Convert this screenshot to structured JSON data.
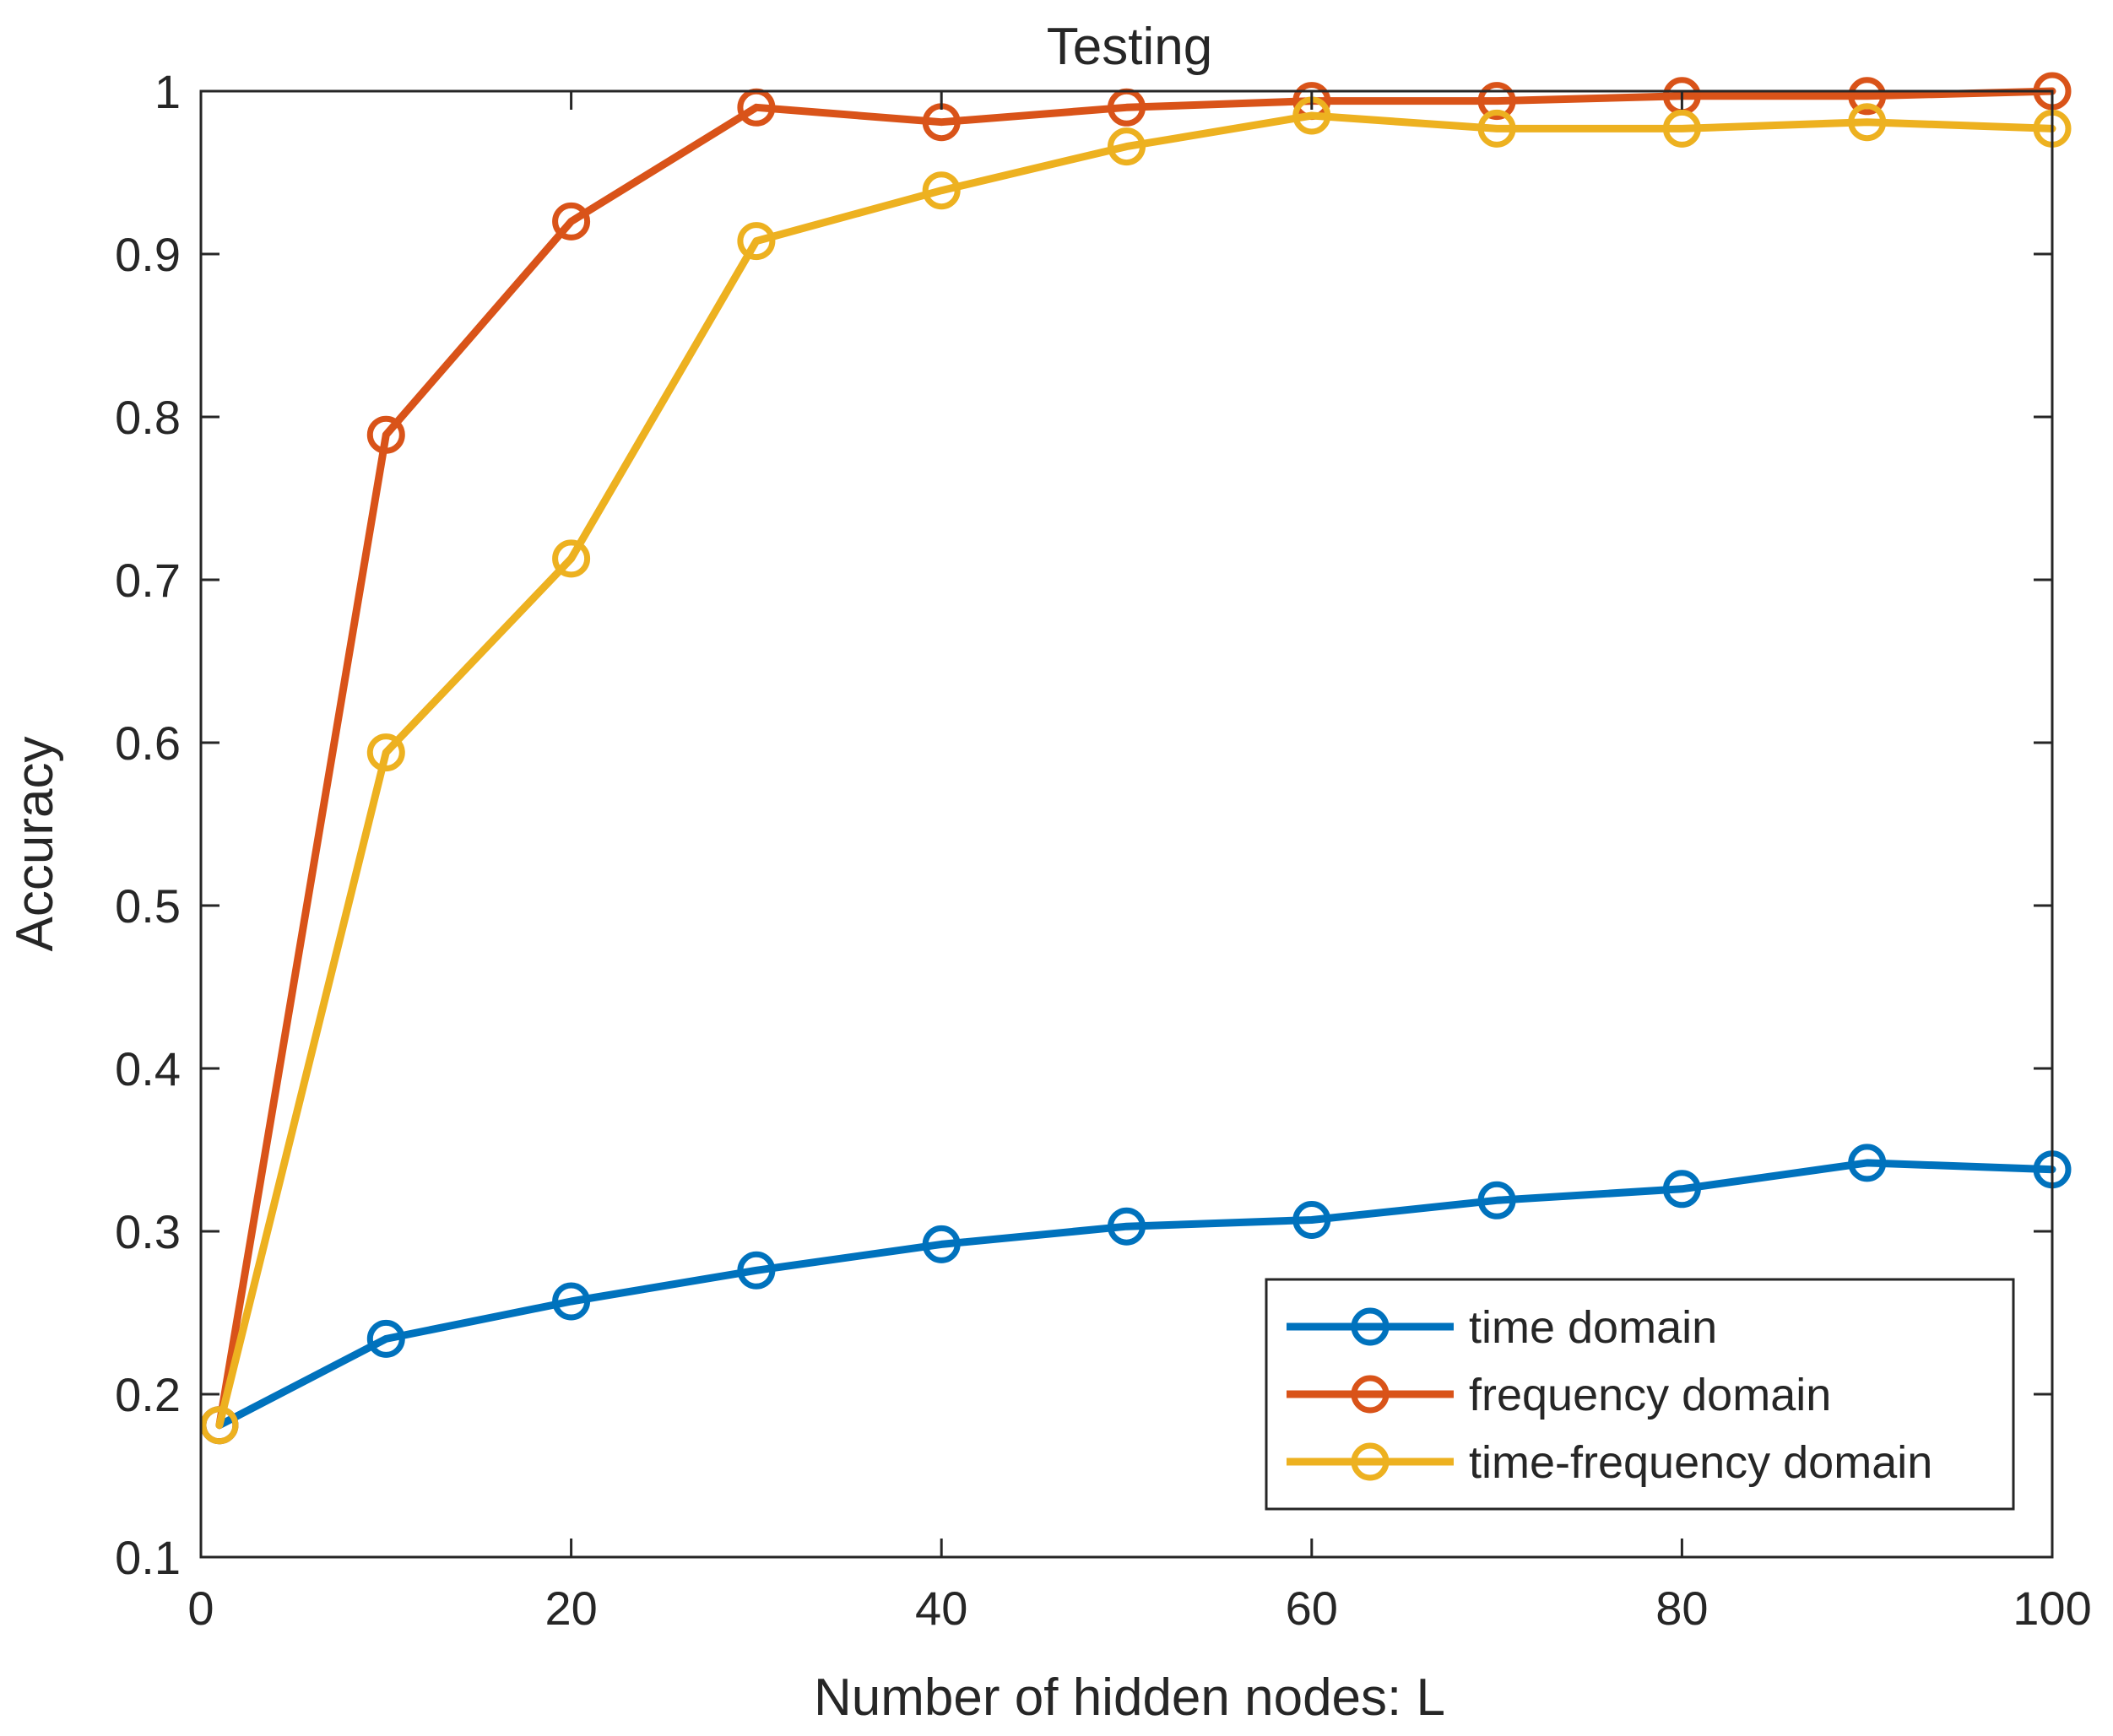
{
  "chart_data": {
    "type": "line",
    "title": "Testing",
    "xlabel": "Number of hidden nodes: L",
    "ylabel": "Accuracy",
    "xlim": [
      0,
      100
    ],
    "ylim": [
      0.1,
      1
    ],
    "xticks": [
      0,
      20,
      40,
      60,
      80,
      100
    ],
    "yticks": [
      0.1,
      0.2,
      0.3,
      0.4,
      0.5,
      0.6,
      0.7,
      0.8,
      0.9,
      1
    ],
    "xtick_labels": [
      "0",
      "20",
      "40",
      "60",
      "80",
      "100"
    ],
    "ytick_labels": [
      "0.1",
      "0.2",
      "0.3",
      "0.4",
      "0.5",
      "0.6",
      "0.7",
      "0.8",
      "0.9",
      "1"
    ],
    "grid": false,
    "legend_position": "bottom-right",
    "marker": "circle",
    "x": [
      1,
      10,
      20,
      30,
      40,
      50,
      60,
      70,
      80,
      90,
      100
    ],
    "series": [
      {
        "name": "time domain",
        "color": "#0072BD",
        "values": [
          0.181,
          0.234,
          0.257,
          0.276,
          0.292,
          0.303,
          0.307,
          0.319,
          0.326,
          0.342,
          0.338
        ]
      },
      {
        "name": "frequency domain",
        "color": "#D95319",
        "values": [
          0.181,
          0.789,
          0.92,
          0.99,
          0.981,
          0.99,
          0.994,
          0.994,
          0.997,
          0.997,
          1.0
        ]
      },
      {
        "name": "time-frequency domain",
        "color": "#EDB120",
        "values": [
          0.181,
          0.594,
          0.713,
          0.908,
          0.939,
          0.966,
          0.985,
          0.977,
          0.977,
          0.981,
          0.977
        ]
      }
    ]
  }
}
